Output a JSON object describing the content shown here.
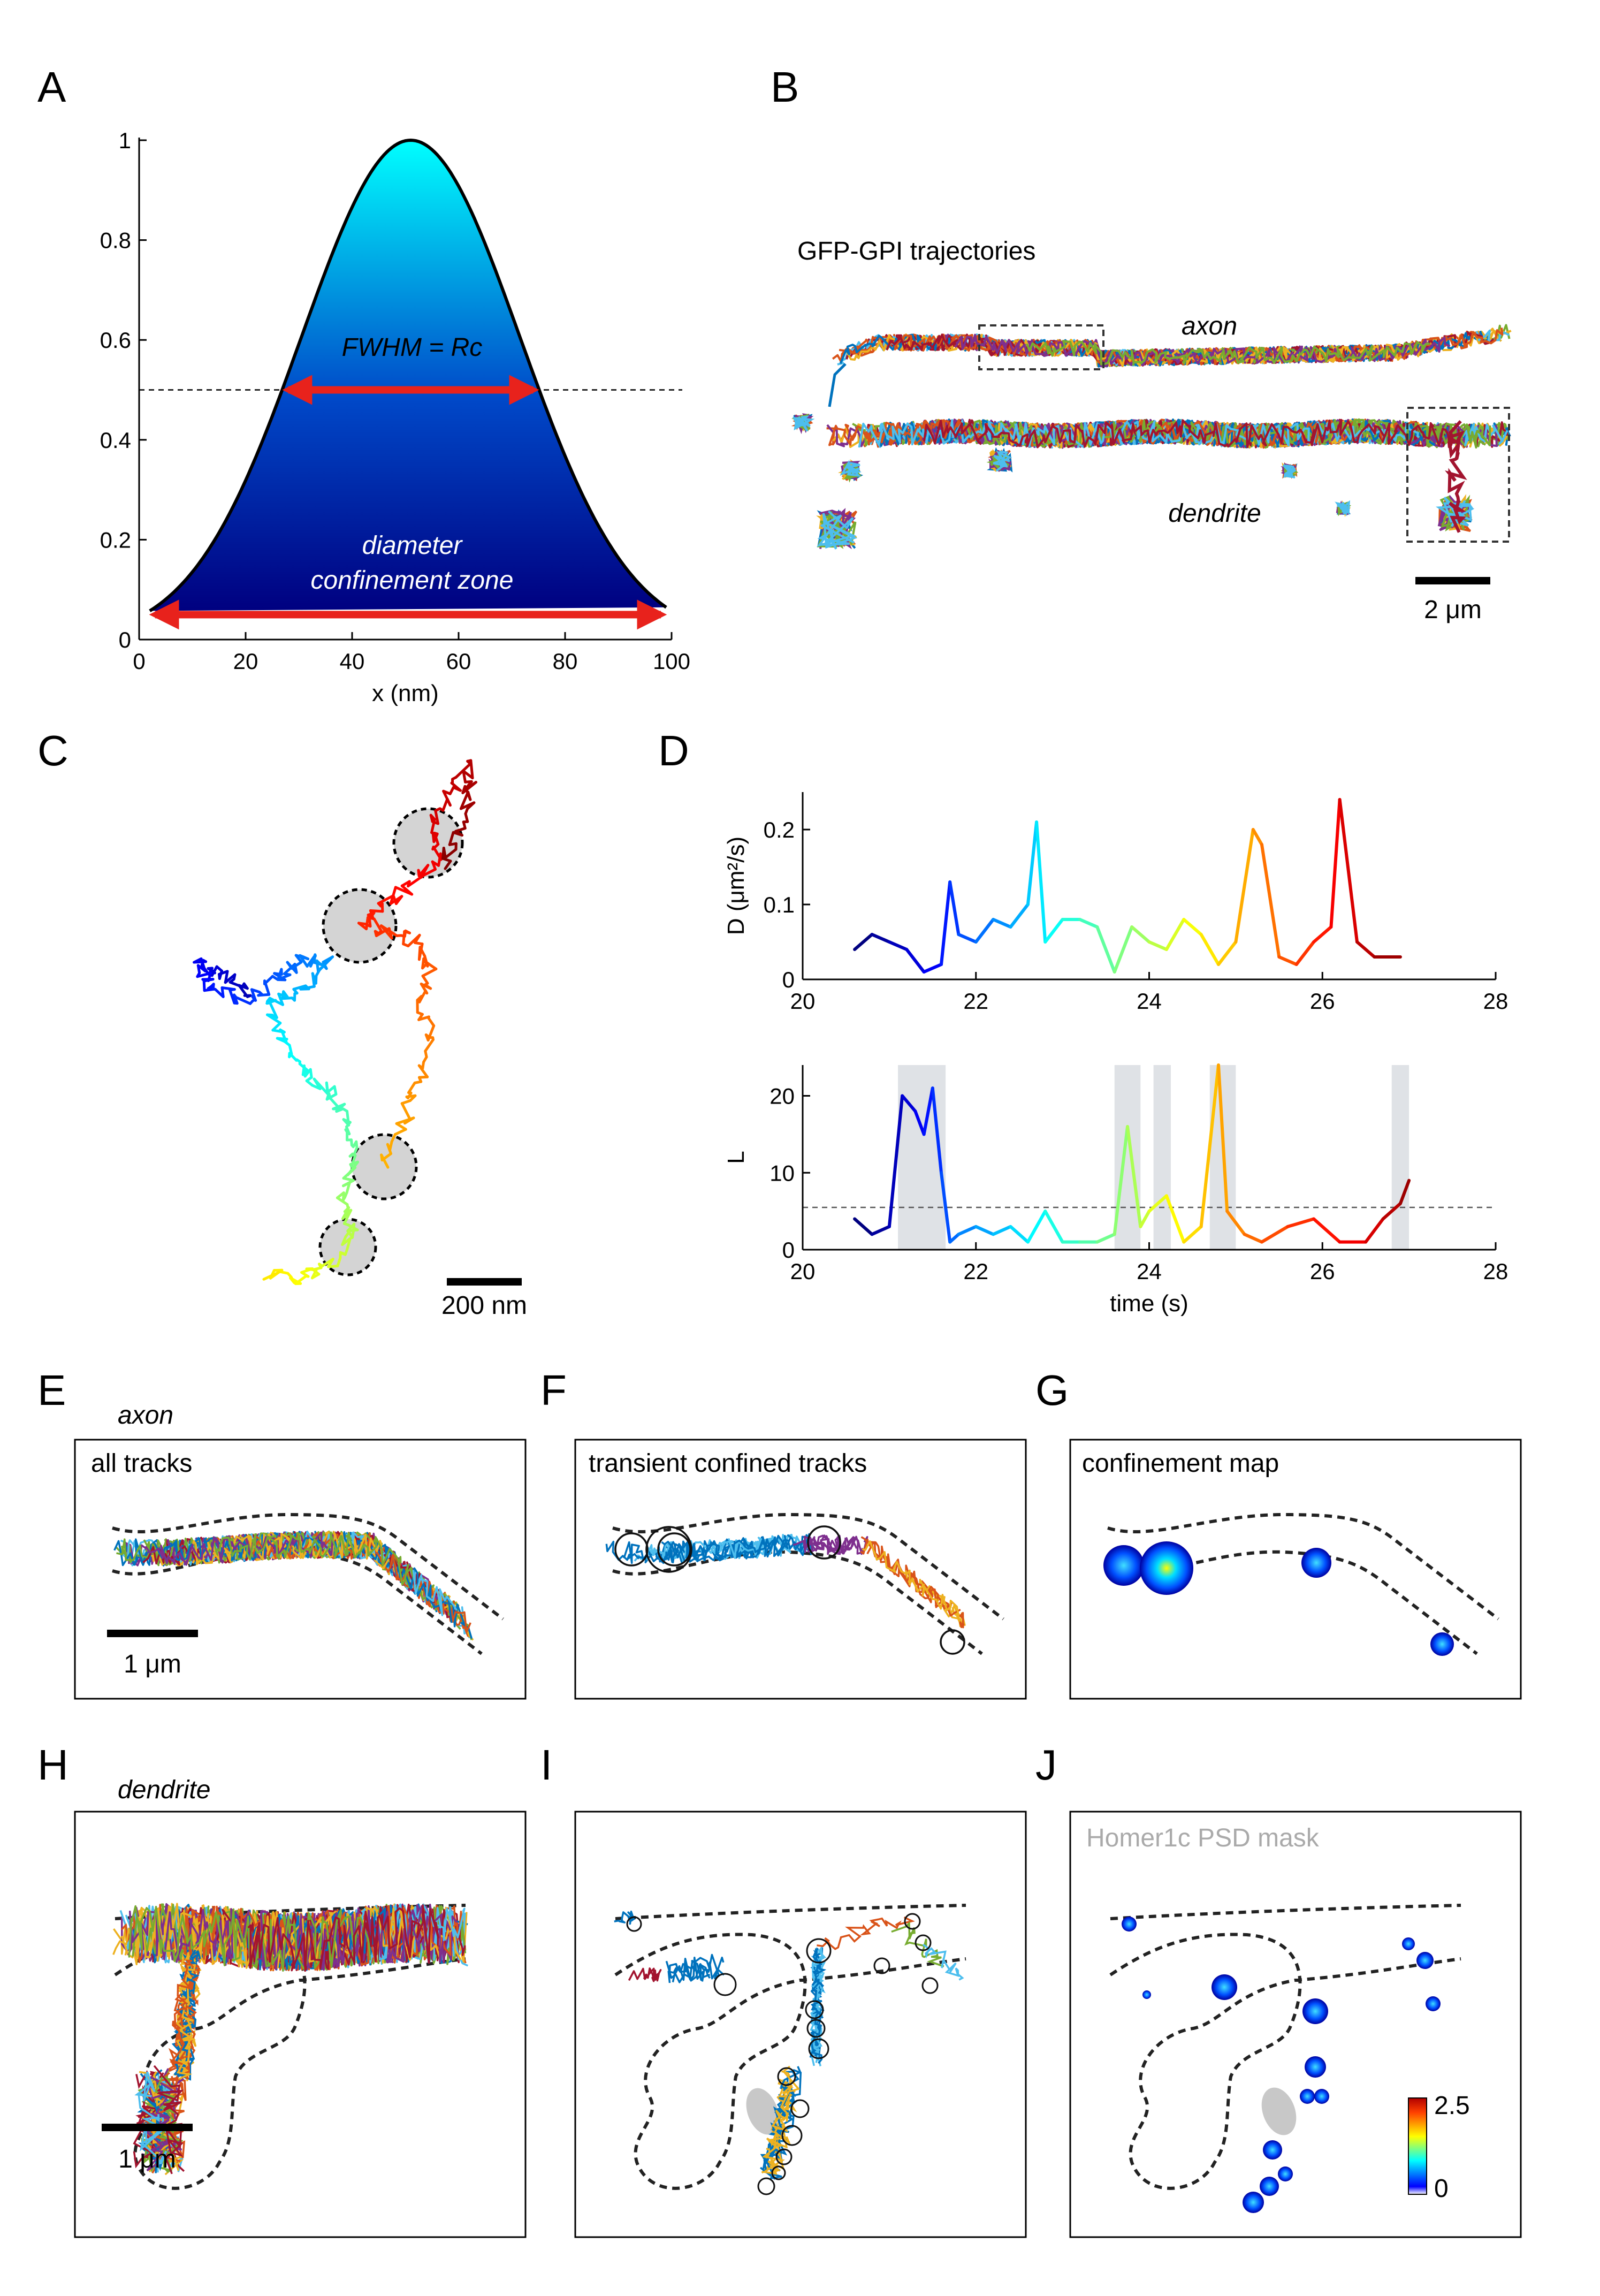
{
  "panels": {
    "A": {
      "label": "A",
      "annotation_fwhm": "FWHM = Rc",
      "annotation_diameter_1": "diameter",
      "annotation_diameter_2": "confinement zone",
      "chart_data": {
        "type": "area",
        "xlabel": "x (nm)",
        "ylabel": "",
        "xlim": [
          0,
          100
        ],
        "ylim": [
          0,
          1
        ],
        "xticks": [
          "0",
          "20",
          "40",
          "60",
          "80",
          "100"
        ],
        "yticks": [
          "0",
          "0.2",
          "0.4",
          "0.6",
          "0.8",
          "1"
        ],
        "curve": "gaussian",
        "x": [
          2,
          10,
          20,
          30,
          40,
          51,
          60,
          70,
          80,
          90,
          99
        ],
        "y": [
          0.07,
          0.15,
          0.28,
          0.5,
          0.8,
          1.0,
          0.88,
          0.6,
          0.35,
          0.17,
          0.07
        ],
        "threshold": 0.5,
        "fwhm_range": [
          28,
          74
        ],
        "diameter_range": [
          3,
          98
        ],
        "colors": {
          "top": "#00ffff",
          "bottom": "#000080",
          "arrow": "#e8221c"
        }
      }
    },
    "B": {
      "label": "B",
      "title": "GFP-GPI trajectories",
      "axon_label": "axon",
      "dendrite_label": "dendrite",
      "scalebar": "2 μm"
    },
    "C": {
      "label": "C",
      "scalebar": "200 nm"
    },
    "D": {
      "label": "D",
      "chart_data": [
        {
          "type": "line",
          "ylabel": "D (μm²/s)",
          "xlim": [
            20,
            28
          ],
          "ylim": [
            0,
            0.25
          ],
          "xticks": [
            "20",
            "22",
            "24",
            "26",
            "28"
          ],
          "yticks": [
            "0",
            "0.1",
            "0.2"
          ],
          "x": [
            20.6,
            20.8,
            21.0,
            21.2,
            21.4,
            21.6,
            21.7,
            21.8,
            22.0,
            22.2,
            22.4,
            22.6,
            22.7,
            22.8,
            23.0,
            23.2,
            23.4,
            23.6,
            23.8,
            24.0,
            24.2,
            24.4,
            24.6,
            24.8,
            25.0,
            25.2,
            25.3,
            25.5,
            25.7,
            25.9,
            26.1,
            26.2,
            26.4,
            26.6,
            26.9
          ],
          "y": [
            0.04,
            0.06,
            0.05,
            0.04,
            0.01,
            0.02,
            0.13,
            0.06,
            0.05,
            0.08,
            0.07,
            0.1,
            0.21,
            0.05,
            0.08,
            0.08,
            0.07,
            0.01,
            0.07,
            0.05,
            0.04,
            0.08,
            0.06,
            0.02,
            0.05,
            0.2,
            0.18,
            0.03,
            0.02,
            0.05,
            0.07,
            0.24,
            0.05,
            0.03,
            0.03
          ]
        },
        {
          "type": "line",
          "ylabel": "L",
          "xlabel": "time (s)",
          "xlim": [
            20,
            28
          ],
          "ylim": [
            0,
            24
          ],
          "xticks": [
            "20",
            "22",
            "24",
            "26",
            "28"
          ],
          "yticks": [
            "0",
            "10",
            "20"
          ],
          "threshold": 5.5,
          "shaded_intervals": [
            [
              21.1,
              21.65
            ],
            [
              23.6,
              23.9
            ],
            [
              24.05,
              24.25
            ],
            [
              24.7,
              25.0
            ],
            [
              26.8,
              27.0
            ]
          ],
          "x": [
            20.6,
            20.8,
            21.0,
            21.15,
            21.3,
            21.4,
            21.5,
            21.6,
            21.7,
            21.8,
            22.0,
            22.2,
            22.4,
            22.6,
            22.8,
            23.0,
            23.2,
            23.4,
            23.6,
            23.75,
            23.9,
            24.0,
            24.2,
            24.4,
            24.6,
            24.8,
            24.9,
            25.1,
            25.3,
            25.6,
            25.9,
            26.2,
            26.5,
            26.7,
            26.9,
            27.0
          ],
          "y": [
            4,
            2,
            3,
            20,
            18,
            15,
            21,
            10,
            1,
            2,
            3,
            2,
            3,
            1,
            5,
            1,
            1,
            1,
            2,
            16,
            3,
            5,
            7,
            1,
            3,
            24,
            5,
            2,
            1,
            3,
            4,
            1,
            1,
            4,
            6,
            9
          ]
        }
      ]
    },
    "E": {
      "label": "E",
      "region": "axon",
      "box_title": "all tracks",
      "scalebar": "1 μm"
    },
    "F": {
      "label": "F",
      "box_title": "transient confined tracks"
    },
    "G": {
      "label": "G",
      "box_title": "confinement map"
    },
    "H": {
      "label": "H",
      "region": "dendrite",
      "scalebar": "1 μm"
    },
    "I": {
      "label": "I"
    },
    "J": {
      "label": "J",
      "box_title": "Homer1c PSD mask",
      "colorbar_max": "2.5",
      "colorbar_min": "0"
    }
  }
}
